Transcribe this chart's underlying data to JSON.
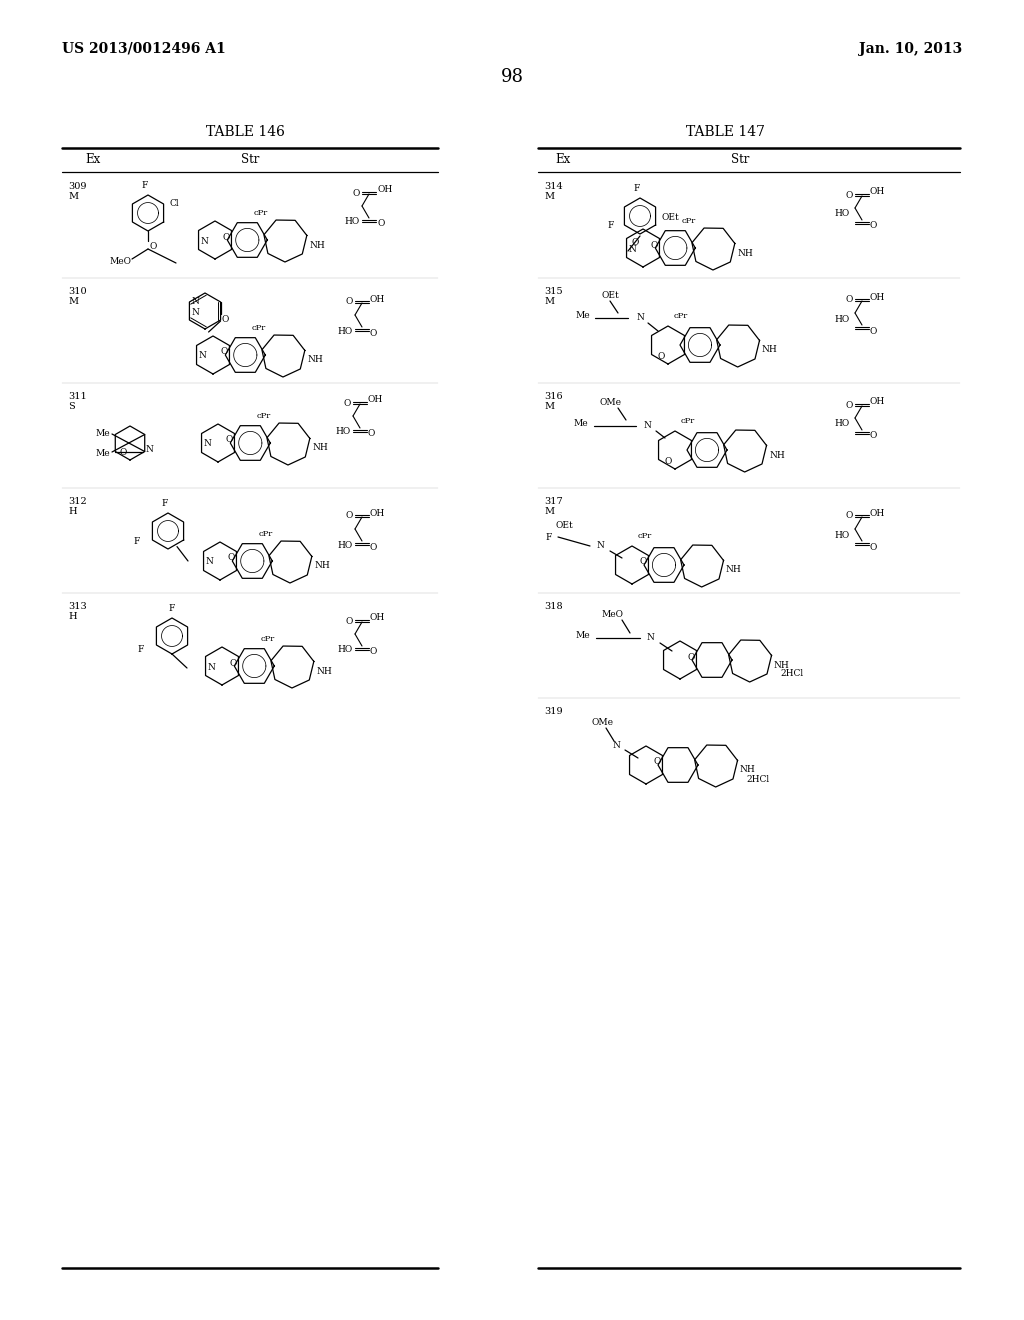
{
  "page_title_left": "US 2013/0012496 A1",
  "page_title_right": "Jan. 10, 2013",
  "page_number": "98",
  "table1_title": "TABLE 146",
  "table2_title": "TABLE 147",
  "bg_color": "#ffffff",
  "fg_color": "#000000"
}
